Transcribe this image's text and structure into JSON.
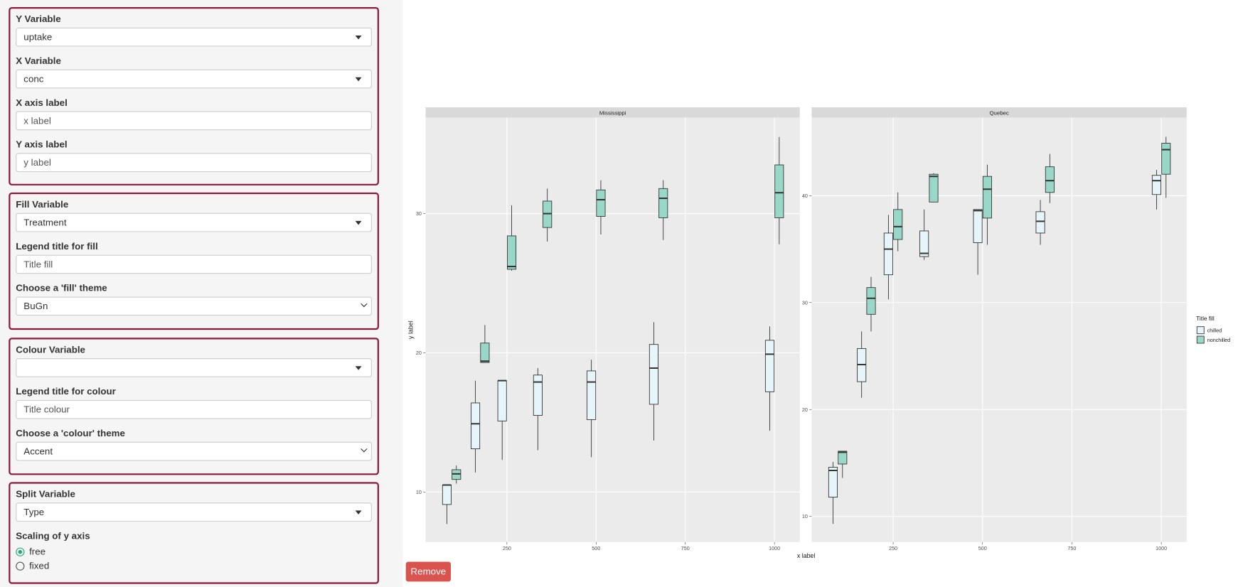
{
  "sidebar": {
    "panels": [
      {
        "fields": [
          {
            "label": "Y Variable",
            "value": "uptake"
          },
          {
            "label": "X Variable",
            "value": "conc"
          },
          {
            "label": "X axis label",
            "value": "x label"
          },
          {
            "label": "Y axis label",
            "value": "y label"
          }
        ]
      },
      {
        "fields": [
          {
            "label": "Fill Variable",
            "value": "Treatment"
          },
          {
            "label": "Legend title for fill",
            "value": "Title fill"
          },
          {
            "label": "Choose a 'fill' theme",
            "value": "BuGn"
          }
        ]
      },
      {
        "fields": [
          {
            "label": "Colour Variable"
          },
          {
            "label": "Legend title for colour",
            "value": "Title colour"
          },
          {
            "label": "Choose a 'colour' theme",
            "value": "Accent"
          }
        ]
      },
      {
        "fields": [
          {
            "label": "Split Variable",
            "value": "Type"
          }
        ],
        "radio": {
          "label": "Scaling of y axis",
          "options": [
            "free",
            "fixed"
          ]
        }
      }
    ]
  },
  "remove_button": "Remove",
  "chart_data": {
    "type": "boxplot",
    "x_label": "x label",
    "y_label": "y label",
    "legend_title": "Title fill",
    "x": [
      95,
      175,
      250,
      350,
      500,
      675,
      1000
    ],
    "xlim": [
      22,
      1071
    ],
    "xticks": [
      250,
      500,
      750,
      1000
    ],
    "facets": [
      {
        "title": "Mississippi",
        "ylim": [
          6.4,
          36.9
        ],
        "yticks": [
          10,
          20,
          30
        ],
        "series": [
          {
            "name": "chilled",
            "color": "#e5f5f9",
            "min": [
              7.7,
              11.4,
              12.3,
              13.0,
              12.5,
              13.7,
              14.4
            ],
            "q1": [
              9.1,
              13.1,
              15.1,
              15.5,
              15.2,
              16.3,
              17.2
            ],
            "median": [
              10.5,
              14.9,
              18.0,
              17.9,
              17.9,
              18.9,
              19.9
            ],
            "q3": [
              10.5,
              16.4,
              18.0,
              18.4,
              18.7,
              20.6,
              20.9
            ],
            "max": [
              10.5,
              18.0,
              18.0,
              18.9,
              19.5,
              22.2,
              21.9
            ]
          },
          {
            "name": "nonchilled",
            "color": "#99d8c9",
            "min": [
              10.6,
              19.3,
              25.9,
              28.0,
              28.5,
              28.1,
              27.8
            ],
            "q1": [
              10.9,
              19.3,
              26.0,
              29.0,
              29.8,
              29.7,
              29.7
            ],
            "median": [
              11.3,
              19.4,
              26.2,
              30.0,
              31.0,
              31.1,
              31.5
            ],
            "q3": [
              11.6,
              20.7,
              28.4,
              30.9,
              31.7,
              31.8,
              33.5
            ],
            "max": [
              11.9,
              22.0,
              30.6,
              31.8,
              32.4,
              32.4,
              35.5
            ]
          }
        ]
      },
      {
        "title": "Quebec",
        "ylim": [
          7.6,
          47.3
        ],
        "yticks": [
          10,
          20,
          30,
          40
        ],
        "series": [
          {
            "name": "chilled",
            "color": "#e5f5f9",
            "min": [
              9.3,
              21.1,
              30.3,
              34.0,
              32.6,
              35.4,
              38.7
            ],
            "q1": [
              11.8,
              22.6,
              32.6,
              34.3,
              35.6,
              36.5,
              40.1
            ],
            "median": [
              14.3,
              24.2,
              35.0,
              34.6,
              38.6,
              37.6,
              41.4
            ],
            "q3": [
              14.6,
              25.7,
              36.5,
              36.7,
              38.7,
              38.5,
              41.9
            ],
            "max": [
              15.1,
              27.3,
              38.2,
              38.7,
              38.7,
              39.6,
              42.4
            ]
          },
          {
            "name": "nonchilled",
            "color": "#99d8c9",
            "min": [
              13.6,
              27.3,
              34.8,
              39.4,
              35.4,
              39.3,
              39.8
            ],
            "q1": [
              14.9,
              28.9,
              35.9,
              39.4,
              37.9,
              40.3,
              42.0
            ],
            "median": [
              16.0,
              30.4,
              37.1,
              41.8,
              40.6,
              41.4,
              44.3
            ],
            "q3": [
              16.1,
              31.4,
              38.7,
              42.0,
              41.8,
              42.7,
              44.9
            ],
            "max": [
              16.1,
              32.4,
              40.3,
              42.1,
              42.9,
              43.9,
              45.5
            ]
          }
        ]
      }
    ]
  }
}
